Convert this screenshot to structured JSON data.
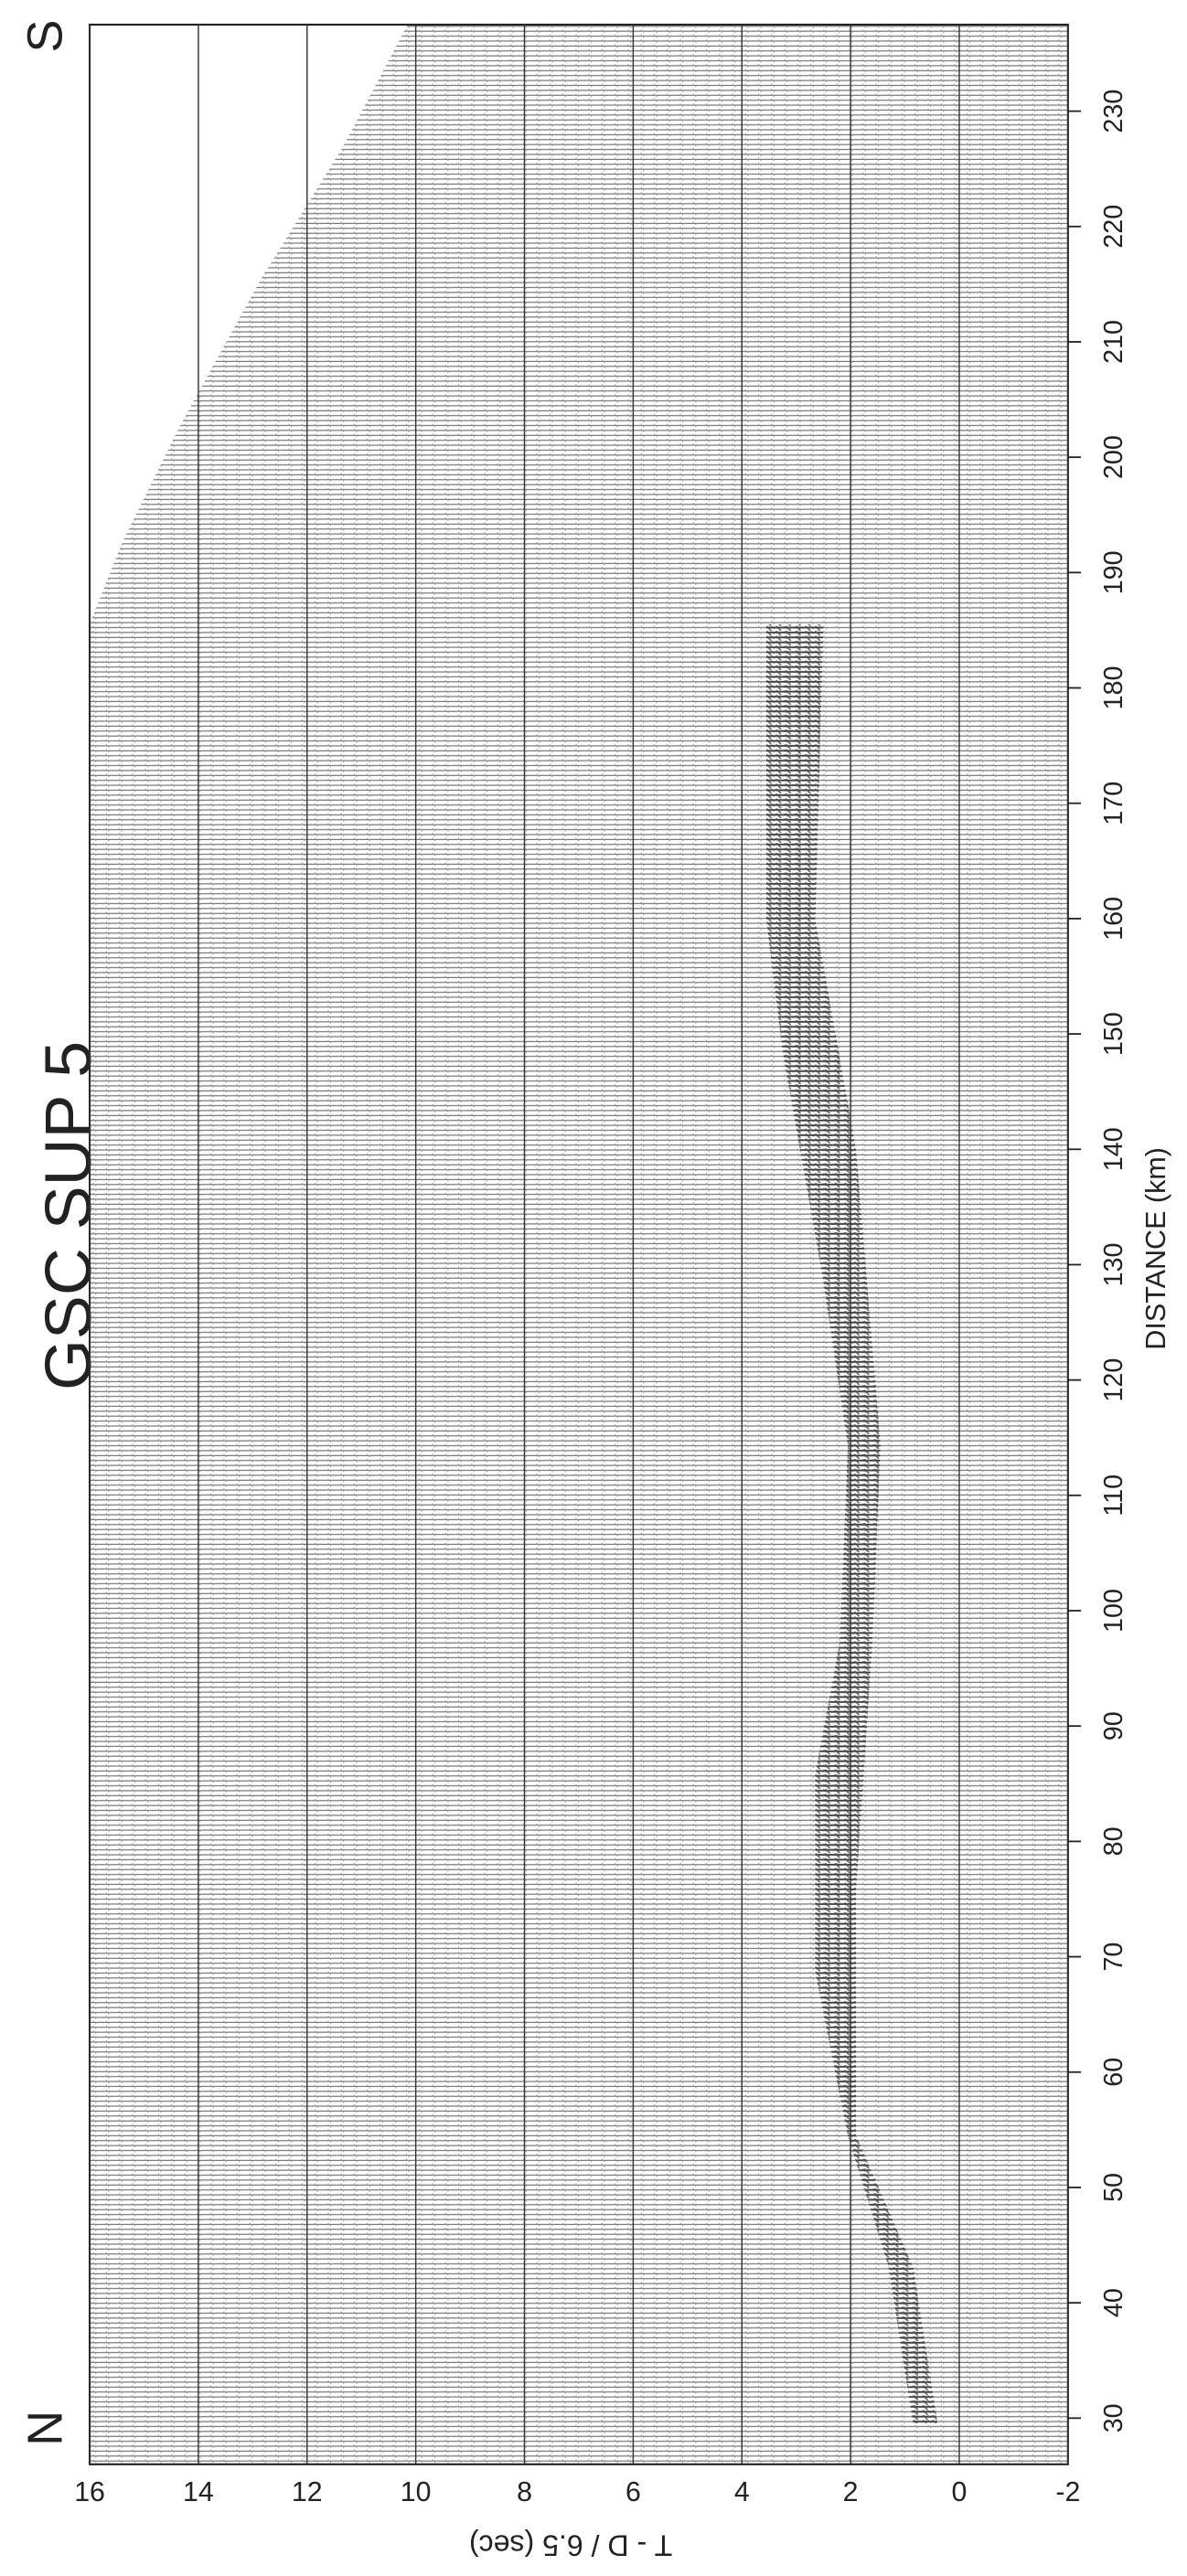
{
  "chart_data": {
    "type": "seismic",
    "title": "GSC SUP 5",
    "left_label": "N",
    "right_label": "S",
    "xlabel": "DISTANCE (km)",
    "ylabel": "T - D / 6.5 (sec)",
    "xlim": [
      26,
      237.5
    ],
    "xticks": [
      30,
      40,
      50,
      60,
      70,
      80,
      90,
      100,
      110,
      120,
      130,
      140,
      150,
      160,
      170,
      180,
      190,
      200,
      210,
      220,
      230
    ],
    "ylim": [
      -2,
      16
    ],
    "yticks": [
      16,
      14,
      12,
      10,
      8,
      6,
      4,
      2,
      0,
      -2
    ],
    "grid": true
  }
}
